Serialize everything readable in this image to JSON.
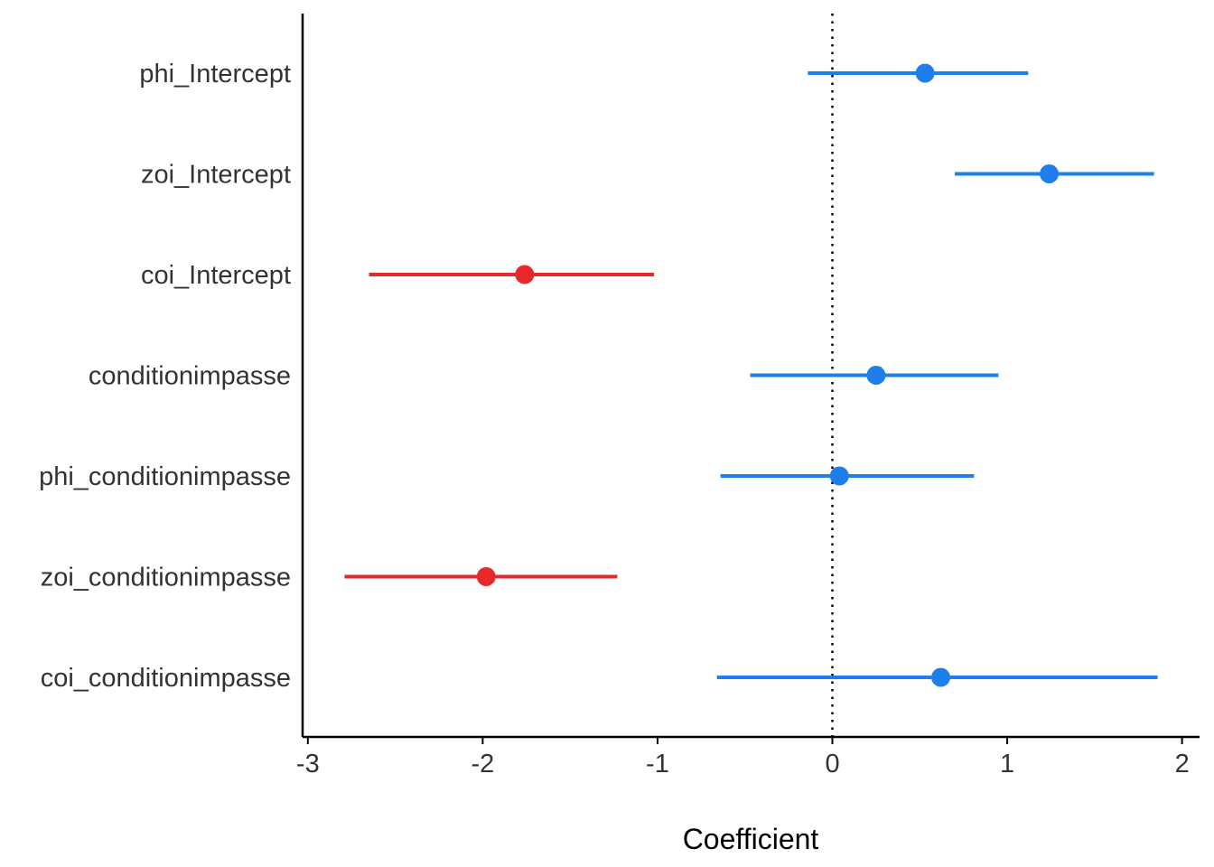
{
  "chart_data": {
    "type": "scatter",
    "xlabel": "Coefficient",
    "ylabel": "",
    "xlim": [
      -3.03,
      2.1
    ],
    "x_ticks": [
      -3,
      -2,
      -1,
      0,
      1,
      2
    ],
    "reference_line": 0,
    "grid": false,
    "colors": {
      "significant_negative": "#E8292C",
      "non_significant": "#1F7FEA"
    },
    "terms": [
      {
        "label": "phi_Intercept",
        "estimate": 0.53,
        "low": -0.14,
        "high": 1.12,
        "color": "#1F7FEA"
      },
      {
        "label": "zoi_Intercept",
        "estimate": 1.24,
        "low": 0.7,
        "high": 1.84,
        "color": "#1F7FEA"
      },
      {
        "label": "coi_Intercept",
        "estimate": -1.76,
        "low": -2.65,
        "high": -1.02,
        "color": "#E8292C"
      },
      {
        "label": "conditionimpasse",
        "estimate": 0.25,
        "low": -0.47,
        "high": 0.95,
        "color": "#1F7FEA"
      },
      {
        "label": "phi_conditionimpasse",
        "estimate": 0.04,
        "low": -0.64,
        "high": 0.81,
        "color": "#1F7FEA"
      },
      {
        "label": "zoi_conditionimpasse",
        "estimate": -1.98,
        "low": -2.79,
        "high": -1.23,
        "color": "#E8292C"
      },
      {
        "label": "coi_conditionimpasse",
        "estimate": 0.62,
        "low": -0.66,
        "high": 1.86,
        "color": "#1F7FEA"
      }
    ]
  }
}
